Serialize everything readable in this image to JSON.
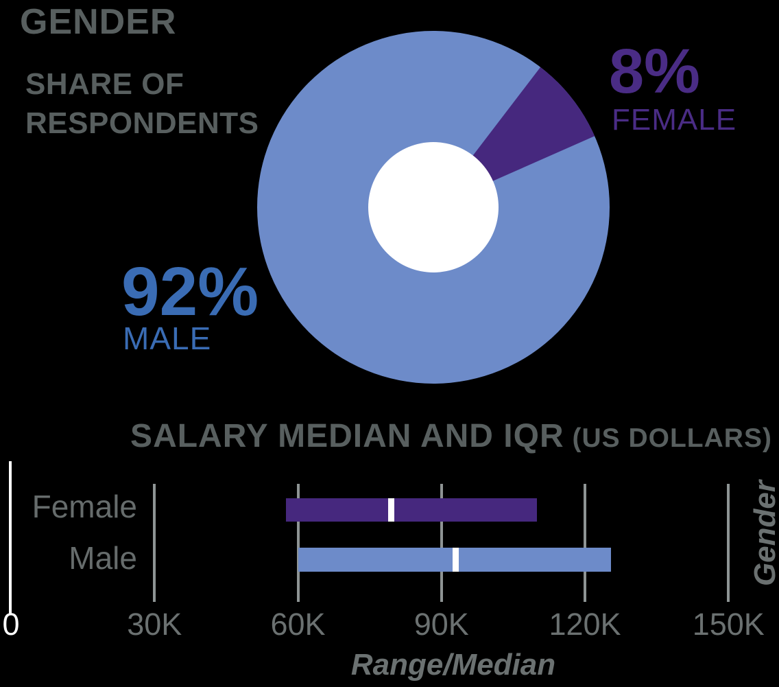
{
  "page": {
    "background_color": "#000000"
  },
  "header": {
    "title": "GENDER",
    "subtitle_line1": "SHARE OF",
    "subtitle_line2": "RESPONDENTS"
  },
  "donut_labels": {
    "female_pct": "8%",
    "female_name": "FEMALE",
    "male_pct": "92%",
    "male_name": "MALE"
  },
  "salary_header": {
    "title_main": "SALARY MEDIAN AND IQR",
    "title_sub": " (US DOLLARS)"
  },
  "colors": {
    "male_blue": "#6d8bc9",
    "female_purple": "#46287e",
    "male_text_blue": "#3a6cb4",
    "female_text_purple": "#4a2c85",
    "heading_grey": "#585f5f",
    "axis_grey": "#6b7171",
    "gridline_grey": "#8e9494",
    "white": "#ffffff"
  },
  "chart_data": [
    {
      "type": "pie",
      "title": "GENDER — SHARE OF RESPONDENTS",
      "categories": [
        "Male",
        "Female"
      ],
      "values": [
        92,
        8
      ],
      "unit": "percent",
      "donut": true,
      "colors": [
        "#6d8bc9",
        "#46287e"
      ],
      "female_slice_start_deg_clockwise_from_top": 37.4,
      "legend_position": "labels-beside-slices"
    },
    {
      "type": "bar",
      "subtype": "horizontal-range-median-IQR-boxplot",
      "title": "SALARY MEDIAN AND IQR (US DOLLARS)",
      "categories": [
        "Female",
        "Male"
      ],
      "series": [
        {
          "name": "iqr_low_usd_thousands",
          "values": [
            57.5,
            60
          ]
        },
        {
          "name": "median_usd_thousands",
          "values": [
            79.5,
            93
          ]
        },
        {
          "name": "iqr_high_usd_thousands",
          "values": [
            110,
            125.5
          ]
        }
      ],
      "colors": [
        "#46287e",
        "#6d8bc9"
      ],
      "xlabel": "Range/Median",
      "ylabel": "Gender",
      "xlim": [
        0,
        150
      ],
      "xticks": [
        0,
        30,
        60,
        90,
        120,
        150
      ],
      "xtick_labels": [
        "0",
        "30K",
        "60K",
        "90K",
        "120K",
        "150K"
      ],
      "grid": "vertical-gridlines-on"
    }
  ]
}
